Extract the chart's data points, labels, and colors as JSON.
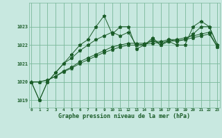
{
  "background_color": "#c8e8e0",
  "grid_color": "#7ab89a",
  "line_color": "#1a5c28",
  "x_ticks": [
    0,
    1,
    2,
    3,
    4,
    5,
    6,
    7,
    8,
    9,
    10,
    11,
    12,
    13,
    14,
    15,
    16,
    17,
    18,
    19,
    20,
    21,
    22,
    23
  ],
  "ylim": [
    1018.6,
    1024.3
  ],
  "xlim": [
    -0.3,
    23.3
  ],
  "yticks": [
    1019,
    1020,
    1021,
    1022,
    1023
  ],
  "xlabel": "Graphe pression niveau de la mer (hPa)",
  "series1": [
    1020.0,
    1019.0,
    1020.0,
    1020.5,
    1021.0,
    1021.5,
    1022.0,
    1022.3,
    1023.0,
    1023.6,
    1022.6,
    1023.0,
    1023.0,
    1021.8,
    1022.0,
    1022.3,
    1022.0,
    1022.2,
    1022.0,
    1022.0,
    1023.0,
    1023.3,
    1023.0,
    1022.0
  ],
  "series2": [
    1020.0,
    1019.0,
    1020.0,
    1020.5,
    1021.0,
    1021.3,
    1021.7,
    1022.0,
    1022.3,
    1022.5,
    1022.7,
    1022.5,
    1022.7,
    1022.0,
    1022.0,
    1022.4,
    1022.0,
    1022.3,
    1022.2,
    1022.3,
    1022.6,
    1023.0,
    1023.0,
    1022.0
  ],
  "series3": [
    1020.0,
    1020.0,
    1020.1,
    1020.3,
    1020.6,
    1020.8,
    1021.1,
    1021.3,
    1021.5,
    1021.7,
    1021.9,
    1022.0,
    1022.1,
    1022.1,
    1022.1,
    1022.2,
    1022.2,
    1022.3,
    1022.3,
    1022.4,
    1022.5,
    1022.6,
    1022.7,
    1021.9
  ],
  "series4": [
    1020.0,
    1020.0,
    1020.1,
    1020.3,
    1020.55,
    1020.75,
    1021.0,
    1021.2,
    1021.4,
    1021.6,
    1021.75,
    1021.9,
    1022.0,
    1022.0,
    1022.05,
    1022.1,
    1022.15,
    1022.2,
    1022.25,
    1022.3,
    1022.4,
    1022.5,
    1022.6,
    1021.9
  ]
}
